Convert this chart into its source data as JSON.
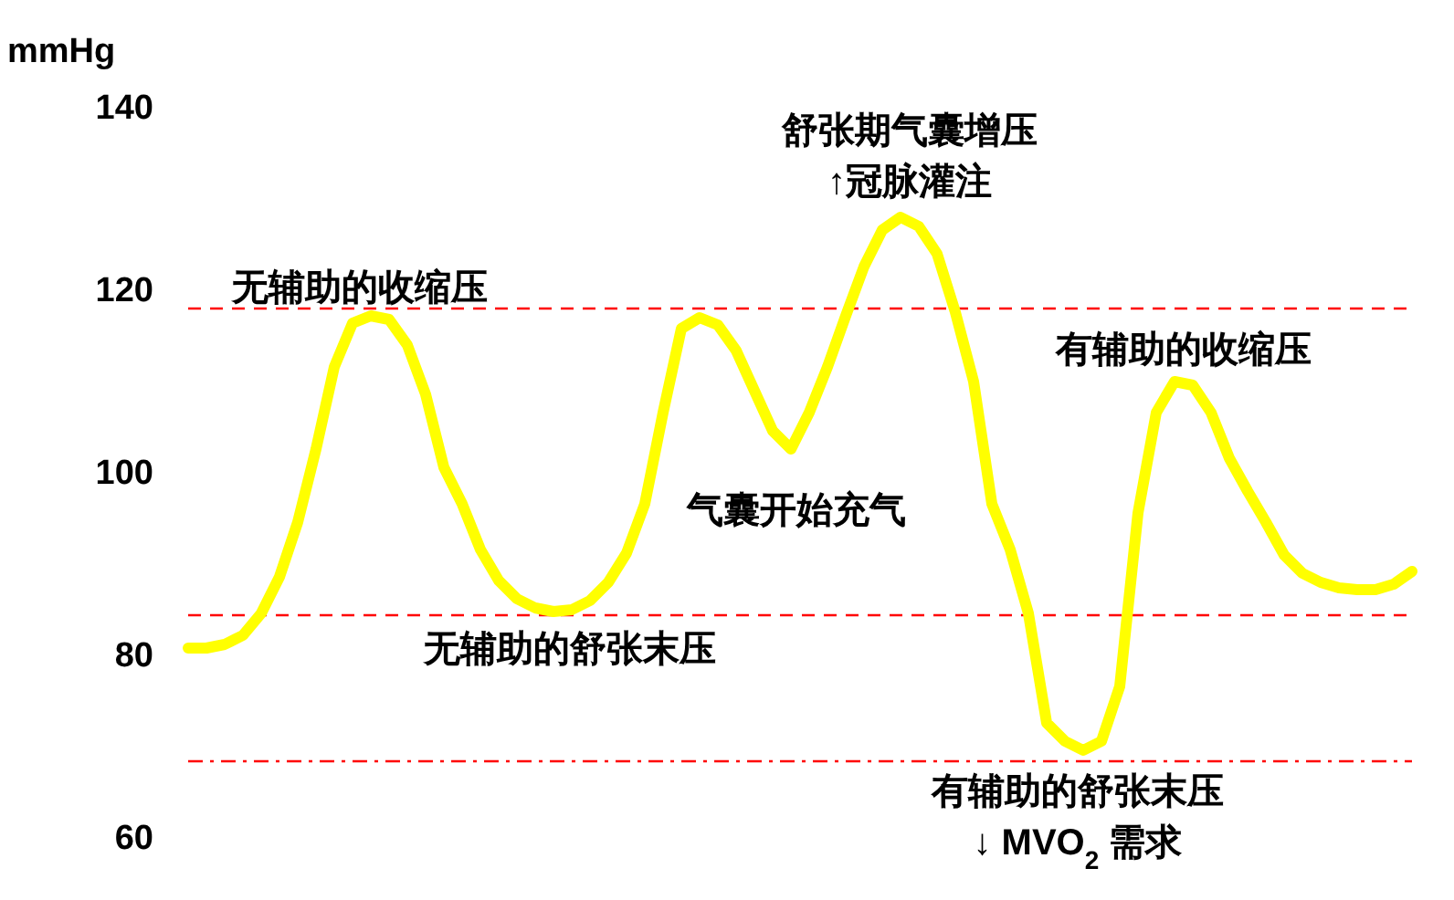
{
  "chart_data": {
    "type": "line",
    "ylabel": "mmHg",
    "ylim": [
      60,
      140
    ],
    "yticks": [
      60,
      80,
      100,
      120,
      140
    ],
    "tick_labels": "y",
    "grid": false,
    "marker": "none",
    "line_style": "solid",
    "categories": [
      null,
      null,
      null,
      null,
      null,
      null,
      null,
      null,
      null,
      null,
      null,
      null,
      null,
      null,
      null,
      null,
      null,
      null,
      null,
      null,
      null,
      null,
      null,
      null,
      null,
      null,
      null,
      null,
      null,
      null,
      null,
      null,
      null,
      null,
      null,
      null,
      null,
      null,
      null,
      null,
      null,
      null,
      null,
      null,
      null,
      null,
      null,
      null,
      null,
      null,
      null,
      null,
      null,
      null,
      null,
      null,
      null,
      null,
      null,
      null,
      null,
      null,
      null,
      null,
      null,
      null,
      null,
      null
    ],
    "series": [
      {
        "color": "#ffff00",
        "values": [
          80.6,
          80.6,
          81.0,
          82.0,
          84.4,
          88.4,
          94.4,
          102.4,
          111.4,
          116.2,
          117.0,
          116.6,
          113.8,
          108.4,
          100.4,
          96.4,
          91.4,
          88.0,
          86.0,
          85.0,
          84.6,
          84.8,
          85.8,
          87.8,
          91.0,
          96.4,
          106.4,
          115.6,
          116.8,
          116.0,
          113.2,
          108.8,
          104.4,
          102.4,
          106.4,
          111.4,
          117.0,
          122.4,
          126.4,
          127.8,
          126.8,
          123.8,
          117.4,
          109.8,
          96.4,
          91.4,
          84.4,
          72.4,
          70.4,
          69.4,
          70.4,
          76.4,
          95.4,
          106.4,
          109.8,
          109.4,
          106.4,
          101.4,
          97.8,
          94.4,
          90.8,
          88.8,
          87.8,
          87.2,
          87.0,
          87.0,
          87.6,
          89.0
        ]
      }
    ],
    "ref_lines": [
      {
        "axis": "y",
        "value": 117.8,
        "color": "#ff0000",
        "line_style": "dashed"
      },
      {
        "axis": "y",
        "value": 84.2,
        "color": "#ff0000",
        "line_style": "dashed"
      },
      {
        "axis": "y",
        "value": 68.2,
        "color": "#ff0000",
        "line_style": "dashdot"
      }
    ],
    "annotations": [
      "无辅助的收缩压",
      "无辅助的舒张末压",
      "气囊开始充气",
      "舒张期气囊增压\n↑冠脉灌注",
      "有辅助的收缩压",
      "有辅助的舒张末压\n↓ MVO$_{2}$ 需求"
    ]
  }
}
